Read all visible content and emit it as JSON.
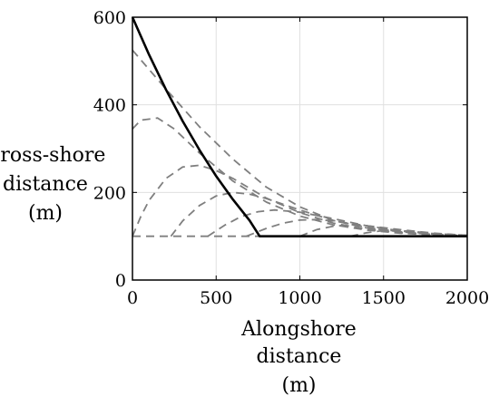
{
  "chart_data": {
    "type": "line",
    "xlabel": [
      "Alongshore",
      "distance",
      "(m)"
    ],
    "ylabel": [
      "Cross-shore",
      "distance",
      "(m)"
    ],
    "xlim": [
      0,
      2000
    ],
    "ylim": [
      0,
      600
    ],
    "xticks": [
      0,
      500,
      1000,
      1500,
      2000
    ],
    "yticks": [
      0,
      200,
      400,
      600
    ],
    "grid": true,
    "colors": {
      "main": "#000000",
      "dashed": "#7f7f7f",
      "grid": "#e0e0e0"
    },
    "series": [
      {
        "style": "solid",
        "x": [
          0,
          100,
          200,
          300,
          400,
          500,
          600,
          700,
          760,
          2000
        ],
        "y": [
          600,
          514,
          435,
          363,
          297,
          237,
          184,
          136,
          100,
          100
        ]
      },
      {
        "style": "dashed",
        "x": [
          0,
          200,
          400,
          600,
          800,
          1000,
          1200,
          1400,
          1600,
          1800,
          2000
        ],
        "y": [
          525,
          436,
          350,
          276,
          212,
          167,
          136,
          119,
          110,
          104,
          101
        ]
      },
      {
        "style": "dashed",
        "x": [
          0,
          50,
          150,
          250,
          400,
          600,
          800,
          1000,
          1200,
          1400,
          1600,
          1800,
          2000
        ],
        "y": [
          345,
          365,
          370,
          345,
          290,
          226,
          178,
          146,
          126,
          114,
          107,
          103,
          101
        ]
      },
      {
        "style": "dashed",
        "x": [
          0,
          50,
          100,
          200,
          300,
          400,
          500,
          600,
          800,
          1000,
          1200,
          1400,
          1600,
          1800,
          2000
        ],
        "y": [
          100,
          145,
          182,
          232,
          258,
          262,
          250,
          232,
          187,
          154,
          130,
          116,
          108,
          104,
          101
        ]
      },
      {
        "style": "dashed",
        "x": [
          230,
          300,
          400,
          500,
          600,
          700,
          800,
          1000,
          1200,
          1400,
          1600,
          1800,
          2000
        ],
        "y": [
          100,
          135,
          170,
          192,
          200,
          196,
          186,
          160,
          136,
          120,
          110,
          104,
          101
        ]
      },
      {
        "style": "dashed",
        "x": [
          450,
          550,
          650,
          750,
          850,
          1000,
          1200,
          1400,
          1600,
          1800,
          2000
        ],
        "y": [
          100,
          125,
          145,
          156,
          160,
          155,
          140,
          124,
          112,
          105,
          101
        ]
      },
      {
        "style": "dashed",
        "x": [
          680,
          800,
          900,
          1000,
          1100,
          1200,
          1400,
          1600,
          1800,
          2000
        ],
        "y": [
          100,
          118,
          130,
          137,
          138,
          135,
          124,
          113,
          106,
          102
        ]
      },
      {
        "style": "dashed",
        "x": [
          1000,
          1100,
          1200,
          1300,
          1400,
          1600,
          1800,
          2000
        ],
        "y": [
          100,
          115,
          123,
          126,
          124,
          115,
          107,
          102
        ]
      },
      {
        "style": "dashed",
        "x": [
          1300,
          1400,
          1500,
          1600,
          1700,
          1800,
          2000
        ],
        "y": [
          100,
          108,
          113,
          113,
          110,
          106,
          102
        ]
      },
      {
        "style": "dashed",
        "x": [
          0,
          2000
        ],
        "y": [
          100,
          100
        ]
      }
    ]
  }
}
